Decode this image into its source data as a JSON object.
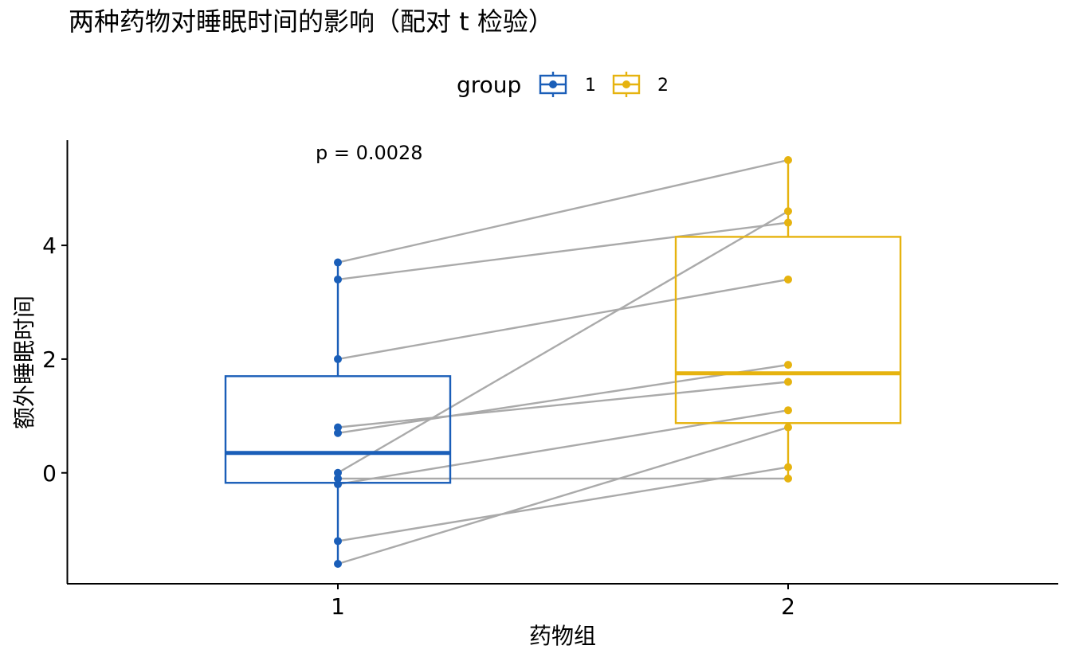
{
  "chart_data": {
    "type": "box",
    "title": "两种药物对睡眠时间的影响（配对 t 检验）",
    "xlabel": "药物组",
    "ylabel": "额外睡眠时间",
    "categories": [
      "1",
      "2"
    ],
    "ylim": [
      -1.95,
      5.85
    ],
    "yticks": [
      0,
      2,
      4
    ],
    "legend": {
      "title": "group",
      "position": "top",
      "entries": [
        "1",
        "2"
      ]
    },
    "annotation": "p = 0.0028",
    "grid": false,
    "series": [
      {
        "name": "1",
        "color": "#1a5eb8",
        "box": {
          "lower_whisker": -1.6,
          "q1": -0.175,
          "median": 0.35,
          "q3": 1.7,
          "upper_whisker": 3.7
        },
        "values": [
          0.7,
          -1.6,
          -0.2,
          -1.2,
          -0.1,
          3.4,
          3.7,
          0.8,
          0.0,
          2.0
        ]
      },
      {
        "name": "2",
        "color": "#e6b30f",
        "box": {
          "lower_whisker": -0.1,
          "q1": 0.875,
          "median": 1.75,
          "q3": 4.15,
          "upper_whisker": 5.5
        },
        "values": [
          1.9,
          0.8,
          1.1,
          0.1,
          -0.1,
          4.4,
          5.5,
          1.6,
          4.6,
          3.4
        ]
      }
    ],
    "paired_line_color": "#aaaaaa"
  }
}
